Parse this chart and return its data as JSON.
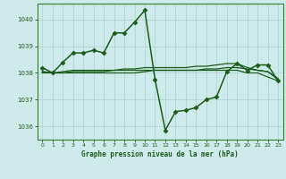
{
  "background_color": "#ceeaea",
  "grid_color": "#afd4d4",
  "line_color": "#1a5c1a",
  "spine_color": "#2e7d2e",
  "title": "Graphe pression niveau de la mer (hPa)",
  "xlim": [
    -0.5,
    23.5
  ],
  "ylim": [
    1035.5,
    1040.6
  ],
  "yticks": [
    1036,
    1037,
    1038,
    1039,
    1040
  ],
  "xticks": [
    0,
    1,
    2,
    3,
    4,
    5,
    6,
    7,
    8,
    9,
    10,
    11,
    12,
    13,
    14,
    15,
    16,
    17,
    18,
    19,
    20,
    21,
    22,
    23
  ],
  "series": [
    {
      "x": [
        0,
        1,
        2,
        3,
        4,
        5,
        6,
        7,
        8,
        9,
        10,
        11,
        12,
        13,
        14,
        15,
        16,
        17,
        18,
        19,
        20,
        21,
        22,
        23
      ],
      "y": [
        1038.2,
        1038.0,
        1038.4,
        1038.75,
        1038.75,
        1038.85,
        1038.75,
        1039.5,
        1039.5,
        1039.9,
        1040.35,
        1037.75,
        1035.85,
        1036.55,
        1036.6,
        1036.7,
        1037.0,
        1037.1,
        1038.05,
        1038.35,
        1038.1,
        1038.3,
        1038.3,
        1037.7
      ],
      "marker": "D",
      "linewidth": 1.1,
      "markersize": 2.5
    },
    {
      "x": [
        0,
        1,
        2,
        3,
        4,
        5,
        6,
        7,
        8,
        9,
        10,
        11,
        12,
        13,
        14,
        15,
        16,
        17,
        18,
        19,
        20,
        21,
        22,
        23
      ],
      "y": [
        1038.05,
        1038.0,
        1038.0,
        1038.05,
        1038.05,
        1038.05,
        1038.05,
        1038.1,
        1038.1,
        1038.1,
        1038.1,
        1038.1,
        1038.1,
        1038.1,
        1038.1,
        1038.1,
        1038.15,
        1038.15,
        1038.2,
        1038.2,
        1038.15,
        1038.1,
        1038.05,
        1037.8
      ],
      "marker": null,
      "linewidth": 0.9,
      "markersize": 0
    },
    {
      "x": [
        0,
        1,
        2,
        3,
        4,
        5,
        6,
        7,
        8,
        9,
        10,
        11,
        12,
        13,
        14,
        15,
        16,
        17,
        18,
        19,
        20,
        21,
        22,
        23
      ],
      "y": [
        1038.05,
        1038.0,
        1038.05,
        1038.1,
        1038.1,
        1038.1,
        1038.1,
        1038.1,
        1038.15,
        1038.15,
        1038.2,
        1038.2,
        1038.2,
        1038.2,
        1038.2,
        1038.25,
        1038.25,
        1038.3,
        1038.35,
        1038.35,
        1038.2,
        1038.1,
        1038.05,
        1037.75
      ],
      "marker": null,
      "linewidth": 0.9,
      "markersize": 0
    },
    {
      "x": [
        0,
        1,
        2,
        3,
        4,
        5,
        6,
        7,
        8,
        9,
        10,
        11,
        12,
        13,
        14,
        15,
        16,
        17,
        18,
        19,
        20,
        21,
        22,
        23
      ],
      "y": [
        1038.0,
        1038.0,
        1038.0,
        1038.0,
        1038.0,
        1038.0,
        1038.0,
        1038.0,
        1038.0,
        1038.0,
        1038.05,
        1038.1,
        1038.1,
        1038.1,
        1038.1,
        1038.1,
        1038.1,
        1038.1,
        1038.1,
        1038.1,
        1038.0,
        1038.0,
        1037.85,
        1037.7
      ],
      "marker": null,
      "linewidth": 0.9,
      "markersize": 0
    }
  ]
}
